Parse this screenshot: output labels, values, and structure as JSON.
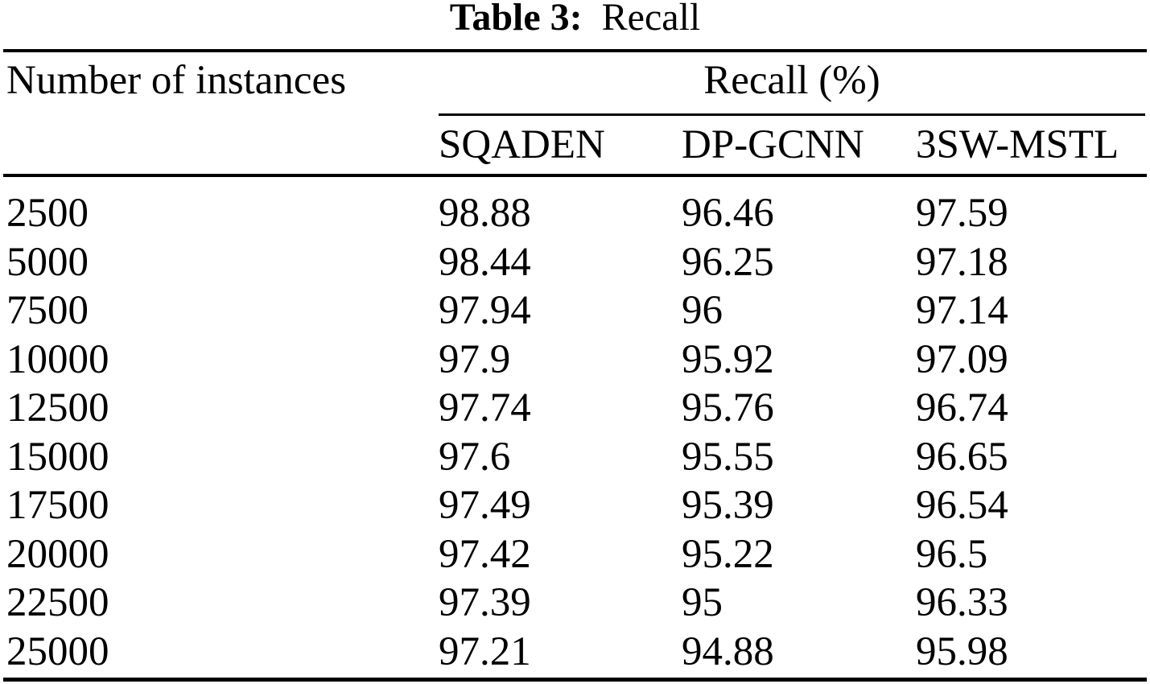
{
  "title": {
    "label": "Table 3:",
    "caption": "Recall"
  },
  "table": {
    "row_header": "Number of instances",
    "group_header": "Recall (%)",
    "columns": [
      "SQADEN",
      "DP-GCNN",
      "3SW-MSTL"
    ],
    "rows": [
      {
        "instances": "2500",
        "values": [
          "98.88",
          "96.46",
          "97.59"
        ]
      },
      {
        "instances": "5000",
        "values": [
          "98.44",
          "96.25",
          "97.18"
        ]
      },
      {
        "instances": "7500",
        "values": [
          "97.94",
          "96",
          "97.14"
        ]
      },
      {
        "instances": "10000",
        "values": [
          "97.9",
          "95.92",
          "97.09"
        ]
      },
      {
        "instances": "12500",
        "values": [
          "97.74",
          "95.76",
          "96.74"
        ]
      },
      {
        "instances": "15000",
        "values": [
          "97.6",
          "95.55",
          "96.65"
        ]
      },
      {
        "instances": "17500",
        "values": [
          "97.49",
          "95.39",
          "96.54"
        ]
      },
      {
        "instances": "20000",
        "values": [
          "97.42",
          "95.22",
          "96.5"
        ]
      },
      {
        "instances": "22500",
        "values": [
          "97.39",
          "95",
          "96.33"
        ]
      },
      {
        "instances": "25000",
        "values": [
          "97.21",
          "94.88",
          "95.98"
        ]
      }
    ]
  },
  "chart_data": {
    "type": "table",
    "title": "Table 3: Recall",
    "xlabel": "Number of instances",
    "ylabel": "Recall (%)",
    "categories": [
      2500,
      5000,
      7500,
      10000,
      12500,
      15000,
      17500,
      20000,
      22500,
      25000
    ],
    "series": [
      {
        "name": "SQADEN",
        "values": [
          98.88,
          98.44,
          97.94,
          97.9,
          97.74,
          97.6,
          97.49,
          97.42,
          97.39,
          97.21
        ]
      },
      {
        "name": "DP-GCNN",
        "values": [
          96.46,
          96.25,
          96,
          95.92,
          95.76,
          95.55,
          95.39,
          95.22,
          95,
          94.88
        ]
      },
      {
        "name": "3SW-MSTL",
        "values": [
          97.59,
          97.18,
          97.14,
          97.09,
          96.74,
          96.65,
          96.54,
          96.5,
          96.33,
          95.98
        ]
      }
    ]
  },
  "colors": {
    "text": "#000000",
    "background": "#ffffff",
    "rule": "#000000"
  }
}
